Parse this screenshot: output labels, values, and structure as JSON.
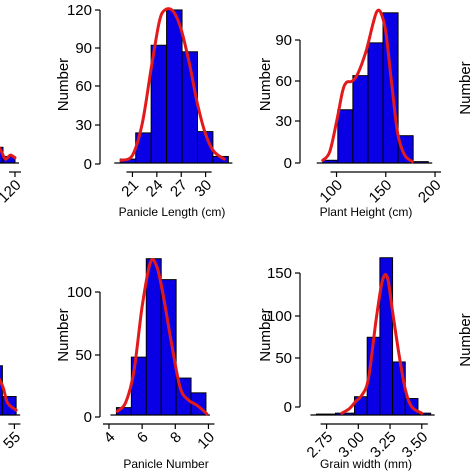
{
  "chart_data": [
    {
      "type": "bar",
      "ylabel": "",
      "xlabel": "",
      "xlim": [
        20,
        130
      ],
      "ylim": [
        0,
        120
      ],
      "xticks": [
        "120"
      ],
      "yticks": [],
      "bins": [
        {
          "x0": 90,
          "x1": 105,
          "count": 12
        },
        {
          "x0": 105,
          "x1": 120,
          "count": 5
        }
      ],
      "density_curve": [
        [
          90,
          4
        ],
        [
          96,
          14
        ],
        [
          102,
          10
        ],
        [
          108,
          3
        ],
        [
          114,
          6
        ],
        [
          120,
          4
        ]
      ]
    },
    {
      "type": "bar",
      "ylabel": "Number",
      "xlabel": "Panicle Length (cm)",
      "xlim": [
        17.5,
        33
      ],
      "ylim": [
        0,
        120
      ],
      "xticks": [
        "21",
        "24",
        "27",
        "30"
      ],
      "yticks": [
        "0",
        "30",
        "60",
        "90",
        "120"
      ],
      "bins": [
        {
          "x0": 19.5,
          "x1": 21.4,
          "count": 3
        },
        {
          "x0": 21.4,
          "x1": 23.3,
          "count": 23
        },
        {
          "x0": 23.3,
          "x1": 25.2,
          "count": 90
        },
        {
          "x0": 25.2,
          "x1": 27.1,
          "count": 117
        },
        {
          "x0": 27.1,
          "x1": 29.0,
          "count": 85
        },
        {
          "x0": 29.0,
          "x1": 30.9,
          "count": 24
        },
        {
          "x0": 30.9,
          "x1": 32.8,
          "count": 5
        }
      ],
      "density_curve": [
        [
          19.6,
          2
        ],
        [
          21.0,
          6
        ],
        [
          22.2,
          30
        ],
        [
          23.3,
          72
        ],
        [
          24.3,
          108
        ],
        [
          25.0,
          117
        ],
        [
          26.0,
          116
        ],
        [
          27.0,
          102
        ],
        [
          28.0,
          76
        ],
        [
          29.0,
          45
        ],
        [
          30.0,
          22
        ],
        [
          31.0,
          9
        ],
        [
          32.3,
          3
        ]
      ]
    },
    {
      "type": "bar",
      "ylabel": "Number",
      "xlabel": "Plant Height (cm)",
      "xlim": [
        68,
        202
      ],
      "ylim": [
        0,
        115
      ],
      "xticks": [
        "100",
        "150",
        "200"
      ],
      "yticks": [
        "0",
        "30",
        "60",
        "90"
      ],
      "bins": [
        {
          "x0": 86,
          "x1": 101.3,
          "count": 2
        },
        {
          "x0": 101.3,
          "x1": 116.6,
          "count": 39
        },
        {
          "x0": 116.6,
          "x1": 131.9,
          "count": 64
        },
        {
          "x0": 131.9,
          "x1": 147.2,
          "count": 88
        },
        {
          "x0": 147.2,
          "x1": 162.5,
          "count": 110
        },
        {
          "x0": 162.5,
          "x1": 177.8,
          "count": 20
        },
        {
          "x0": 177.8,
          "x1": 193.1,
          "count": 1
        }
      ],
      "density_curve": [
        [
          86,
          2
        ],
        [
          93,
          8
        ],
        [
          100,
          30
        ],
        [
          106,
          52
        ],
        [
          110,
          59
        ],
        [
          116,
          60
        ],
        [
          122,
          66
        ],
        [
          130,
          82
        ],
        [
          137,
          102
        ],
        [
          141,
          111
        ],
        [
          145,
          110
        ],
        [
          150,
          96
        ],
        [
          156,
          58
        ],
        [
          162,
          22
        ],
        [
          169,
          6
        ],
        [
          177,
          1
        ]
      ]
    },
    {
      "type": "bar",
      "ylabel": "",
      "xlabel": "",
      "xlim": [
        0,
        60
      ],
      "ylim": [
        0,
        130
      ],
      "xticks": [
        "55"
      ],
      "yticks": [],
      "bins": [
        {
          "x0": 40,
          "x1": 48,
          "count": 40
        },
        {
          "x0": 48,
          "x1": 56,
          "count": 15
        }
      ],
      "density_curve": [
        [
          40,
          8
        ],
        [
          44,
          30
        ],
        [
          48,
          24
        ],
        [
          51,
          10
        ],
        [
          56,
          4
        ]
      ]
    },
    {
      "type": "bar",
      "ylabel": "Number",
      "xlabel": "Panicle Number",
      "xlim": [
        3.7,
        11.3
      ],
      "ylim": [
        0,
        130
      ],
      "xticks": [
        "4",
        "6",
        "8",
        "10"
      ],
      "yticks": [
        "0",
        "50",
        "100"
      ],
      "bins": [
        {
          "x0": 4.45,
          "x1": 5.35,
          "count": 6
        },
        {
          "x0": 5.35,
          "x1": 6.25,
          "count": 47
        },
        {
          "x0": 6.25,
          "x1": 7.15,
          "count": 127
        },
        {
          "x0": 7.15,
          "x1": 8.05,
          "count": 110
        },
        {
          "x0": 8.05,
          "x1": 8.95,
          "count": 30
        },
        {
          "x0": 8.95,
          "x1": 9.85,
          "count": 18
        }
      ],
      "density_curve": [
        [
          4.5,
          3
        ],
        [
          5.0,
          10
        ],
        [
          5.5,
          35
        ],
        [
          6.0,
          88
        ],
        [
          6.5,
          124
        ],
        [
          6.9,
          120
        ],
        [
          7.3,
          95
        ],
        [
          7.8,
          56
        ],
        [
          8.3,
          22
        ],
        [
          8.8,
          12
        ],
        [
          9.3,
          8
        ],
        [
          9.9,
          1
        ]
      ]
    },
    {
      "type": "bar",
      "ylabel": "Number",
      "xlabel": "Grain width (mm)",
      "xlim": [
        2.58,
        3.62
      ],
      "ylim": [
        0,
        175
      ],
      "xticks": [
        "2.75",
        "3.00",
        "3.25",
        "3.50"
      ],
      "yticks": [
        "0",
        "50",
        "100",
        "150"
      ],
      "bins": [
        {
          "x0": 2.67,
          "x1": 2.82,
          "count": 1
        },
        {
          "x0": 2.82,
          "x1": 2.97,
          "count": 2
        },
        {
          "x0": 2.97,
          "x1": 3.07,
          "count": 20
        },
        {
          "x0": 3.07,
          "x1": 3.17,
          "count": 85
        },
        {
          "x0": 3.17,
          "x1": 3.27,
          "count": 172
        },
        {
          "x0": 3.27,
          "x1": 3.37,
          "count": 58
        },
        {
          "x0": 3.37,
          "x1": 3.47,
          "count": 18
        },
        {
          "x0": 3.47,
          "x1": 3.57,
          "count": 2
        }
      ],
      "density_curve": [
        [
          2.87,
          2
        ],
        [
          2.93,
          7
        ],
        [
          2.98,
          15
        ],
        [
          3.03,
          22
        ],
        [
          3.08,
          40
        ],
        [
          3.14,
          104
        ],
        [
          3.19,
          147
        ],
        [
          3.23,
          150
        ],
        [
          3.27,
          113
        ],
        [
          3.32,
          67
        ],
        [
          3.37,
          28
        ],
        [
          3.42,
          9
        ],
        [
          3.5,
          2
        ]
      ]
    },
    {
      "type": "bar",
      "ylabel": "Number",
      "xlabel": "",
      "xlim": [
        0,
        1
      ],
      "ylim": [
        0,
        1
      ],
      "xticks": [],
      "yticks": [],
      "bins": [],
      "density_curve": []
    },
    {
      "type": "bar",
      "ylabel": "Number",
      "xlabel": "",
      "xlim": [
        0,
        1
      ],
      "ylim": [
        0,
        1
      ],
      "xticks": [],
      "yticks": [],
      "bins": [],
      "density_curve": []
    }
  ],
  "colors": {
    "bar_fill": "#0a00e6",
    "bar_stroke": "#000000",
    "curve": "#e31a1c",
    "axis": "#000000"
  }
}
